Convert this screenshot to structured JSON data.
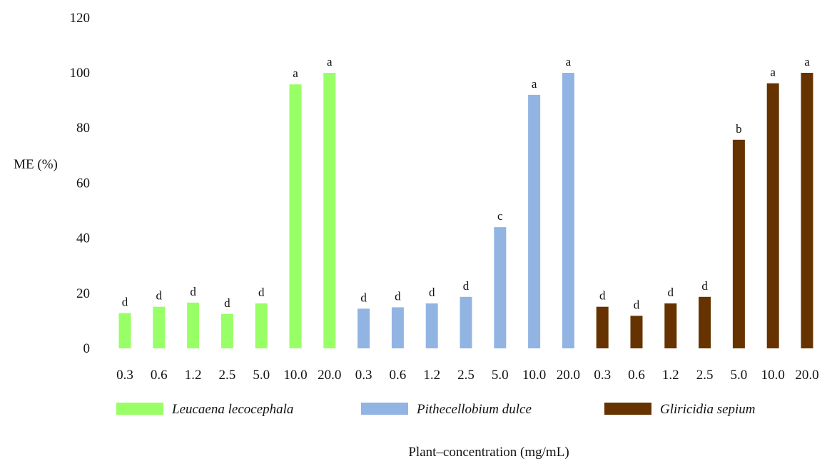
{
  "chart_data": {
    "type": "bar",
    "ylabel": "ME (%)",
    "xlabel": "Plant–concentration (mg/mL)",
    "ylim": [
      0,
      120
    ],
    "yticks": [
      0,
      20,
      40,
      60,
      80,
      100,
      120
    ],
    "grid": false,
    "legend_position": "bottom",
    "categories": [
      "0.3",
      "0.6",
      "1.2",
      "2.5",
      "5.0",
      "10.0",
      "20.0"
    ],
    "series": [
      {
        "name": "Leucaena lecocephala",
        "color": "#99FF66",
        "values": [
          12.8,
          15.1,
          16.6,
          12.5,
          16.3,
          95.8,
          100
        ],
        "labels": [
          "d",
          "d",
          "d",
          "d",
          "d",
          "a",
          "a"
        ]
      },
      {
        "name": "Pithecellobium dulce",
        "color": "#92B4E3",
        "values": [
          14.4,
          14.9,
          16.3,
          18.7,
          44,
          92,
          100
        ],
        "labels": [
          "d",
          "d",
          "d",
          "d",
          "c",
          "a",
          "a"
        ]
      },
      {
        "name": "Gliricidia sepium",
        "color": "#663300",
        "values": [
          15.1,
          11.8,
          16.3,
          18.7,
          75.7,
          96.2,
          100
        ],
        "labels": [
          "d",
          "d",
          "d",
          "d",
          "b",
          "a",
          "a"
        ]
      }
    ]
  }
}
